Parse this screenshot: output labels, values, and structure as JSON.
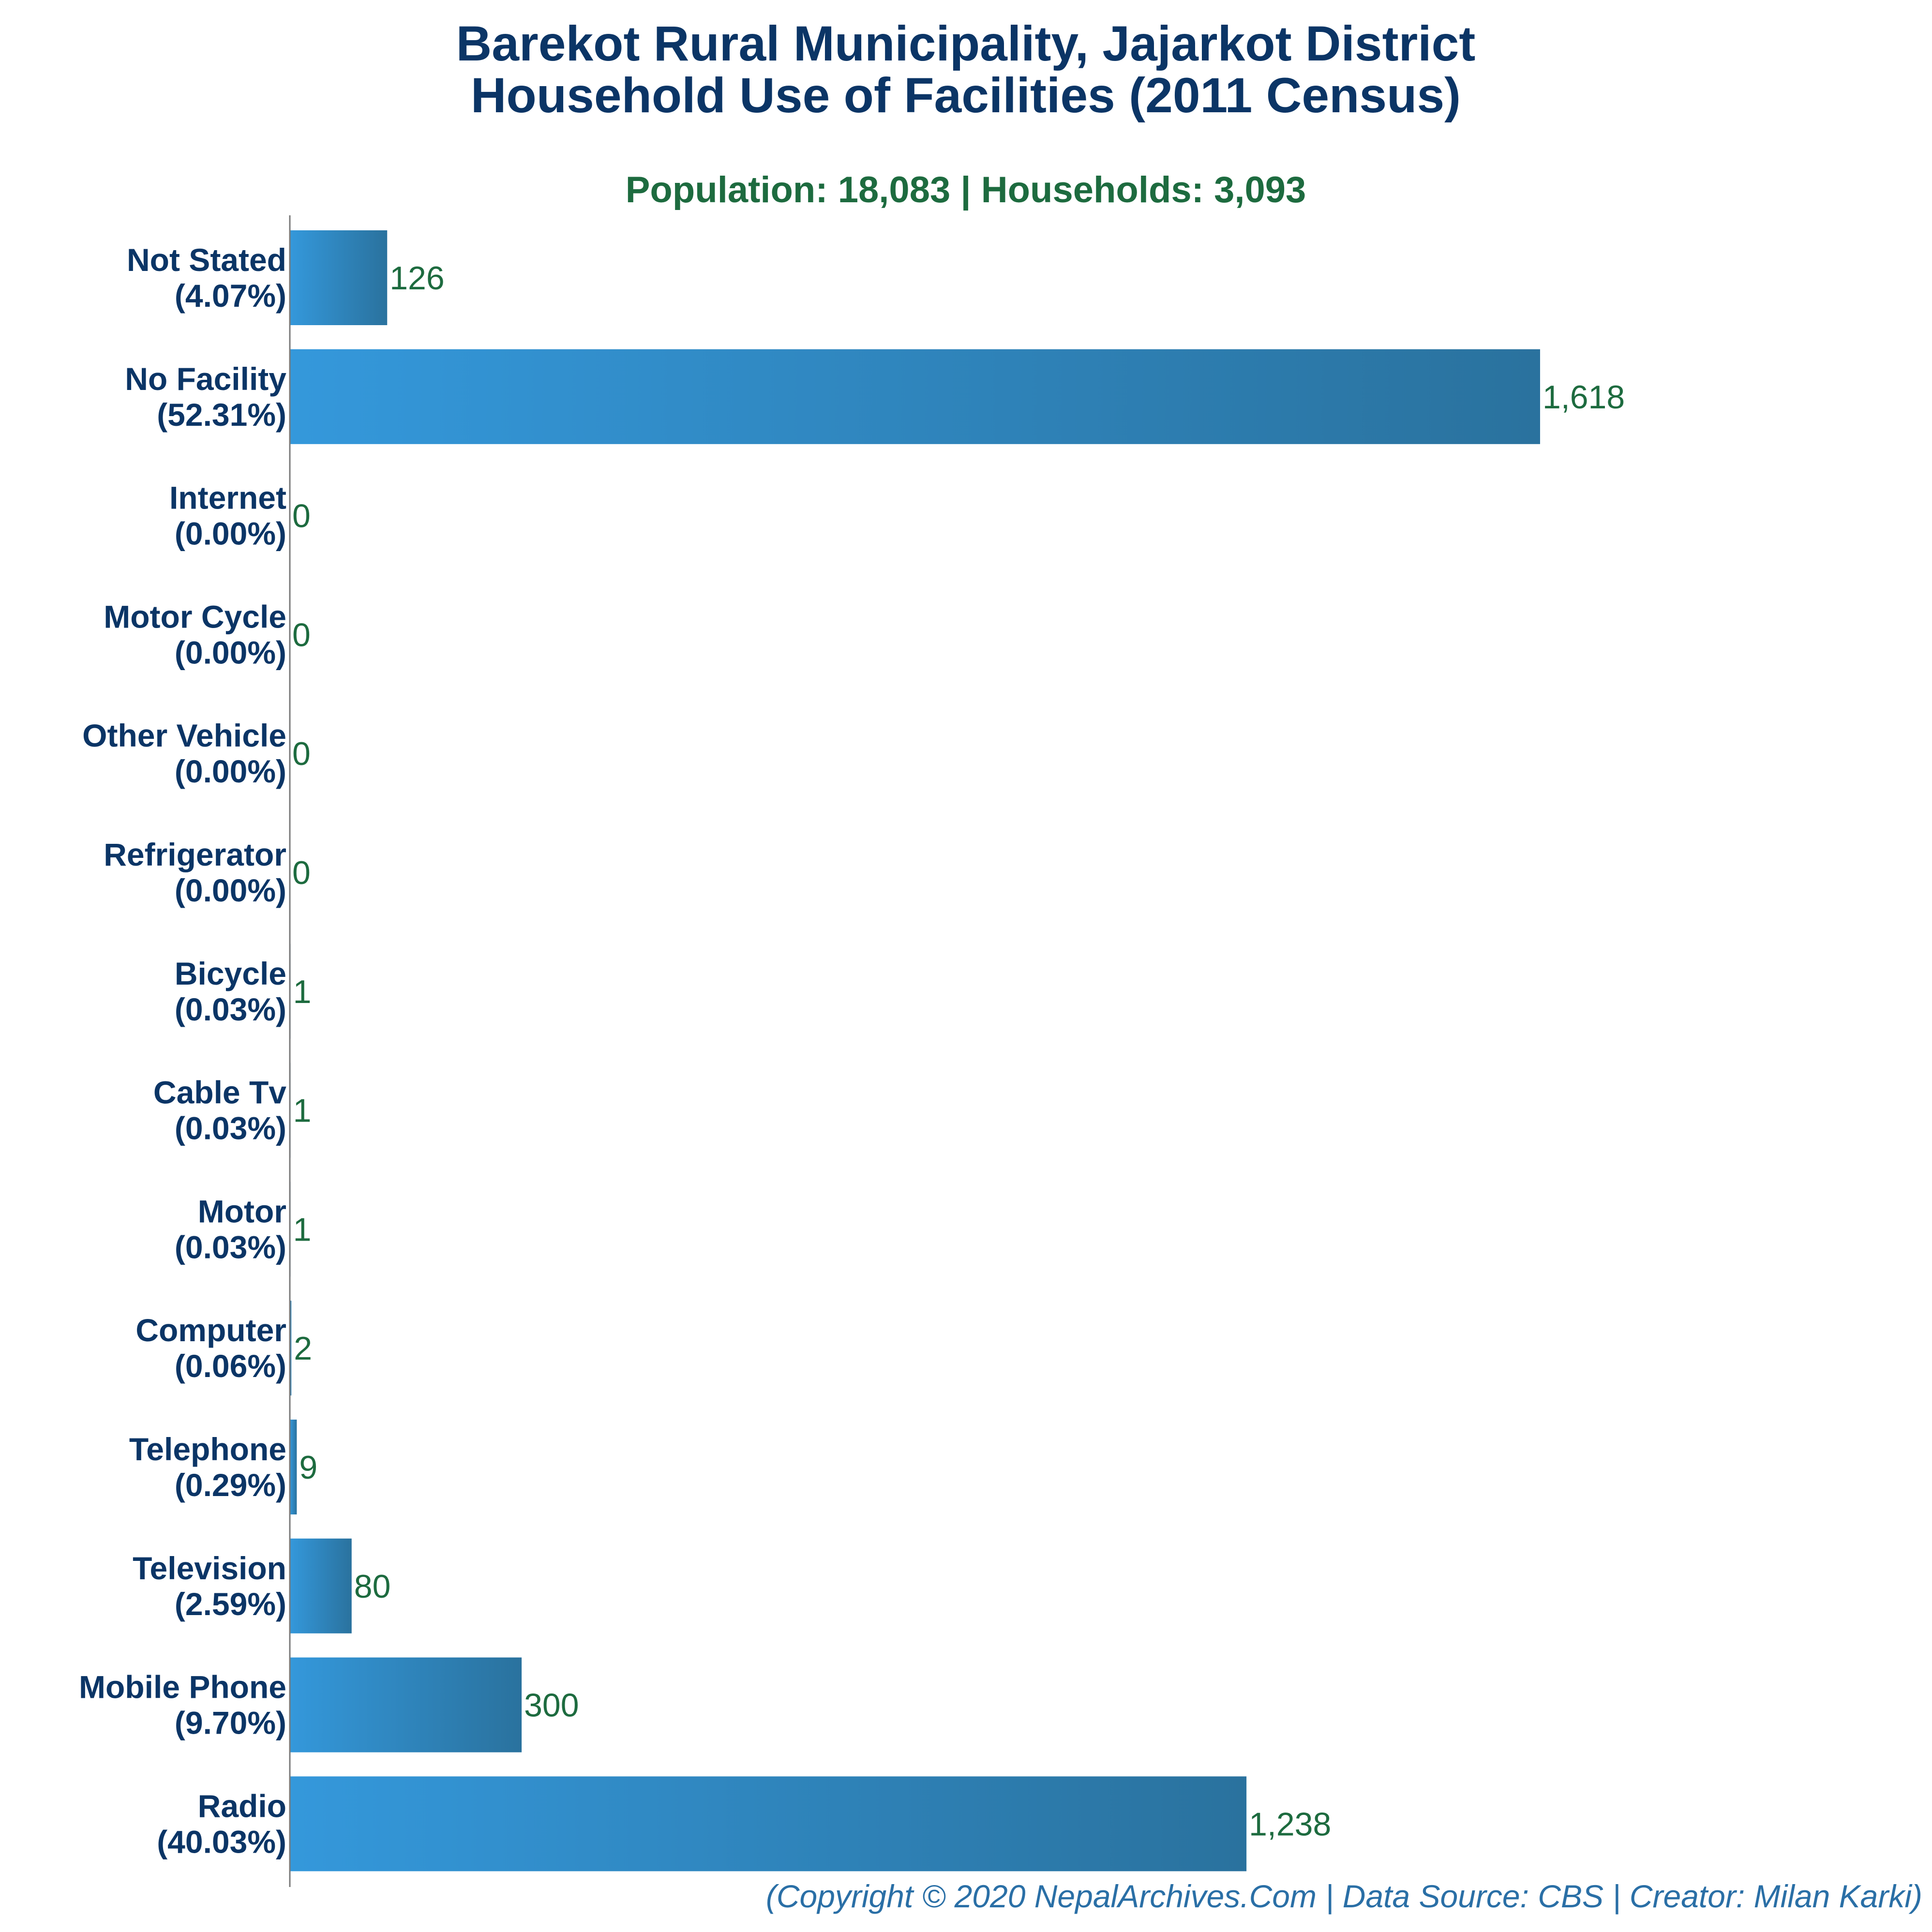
{
  "colors": {
    "title": "#0b3566",
    "subtitle": "#1d6b3f",
    "category_label": "#0b3566",
    "value_label": "#1d6b3f",
    "footer": "#2a6fa6",
    "bar_gradient_start": "#3498db",
    "bar_gradient_end": "#2a729e",
    "axis_line": "#7a7a7a"
  },
  "chart_data": {
    "type": "bar",
    "orientation": "horizontal",
    "title": "Barekot Rural Municipality, Jajarkot District",
    "title_line2": "Household Use of Facilities (2011 Census)",
    "subtitle": "Population: 18,083 | Households: 3,093",
    "categories": [
      "Not Stated",
      "No Facility",
      "Internet",
      "Motor Cycle",
      "Other Vehicle",
      "Refrigerator",
      "Bicycle",
      "Cable Tv",
      "Motor",
      "Computer",
      "Telephone",
      "Television",
      "Mobile Phone",
      "Radio"
    ],
    "percentages": [
      "(4.07%)",
      "(52.31%)",
      "(0.00%)",
      "(0.00%)",
      "(0.00%)",
      "(0.00%)",
      "(0.03%)",
      "(0.03%)",
      "(0.03%)",
      "(0.06%)",
      "(0.29%)",
      "(2.59%)",
      "(9.70%)",
      "(40.03%)"
    ],
    "values": [
      126,
      1618,
      0,
      0,
      0,
      0,
      1,
      1,
      1,
      2,
      9,
      80,
      300,
      1238
    ],
    "value_labels": [
      "126",
      "1,618",
      "0",
      "0",
      "0",
      "0",
      "1",
      "1",
      "1",
      "2",
      "9",
      "80",
      "300",
      "1,238"
    ],
    "xlim": [
      0,
      1618
    ],
    "grid": false,
    "legend": "none",
    "footer": "(Copyright © 2020 NepalArchives.Com | Data Source: CBS | Creator: Milan Karki)"
  }
}
